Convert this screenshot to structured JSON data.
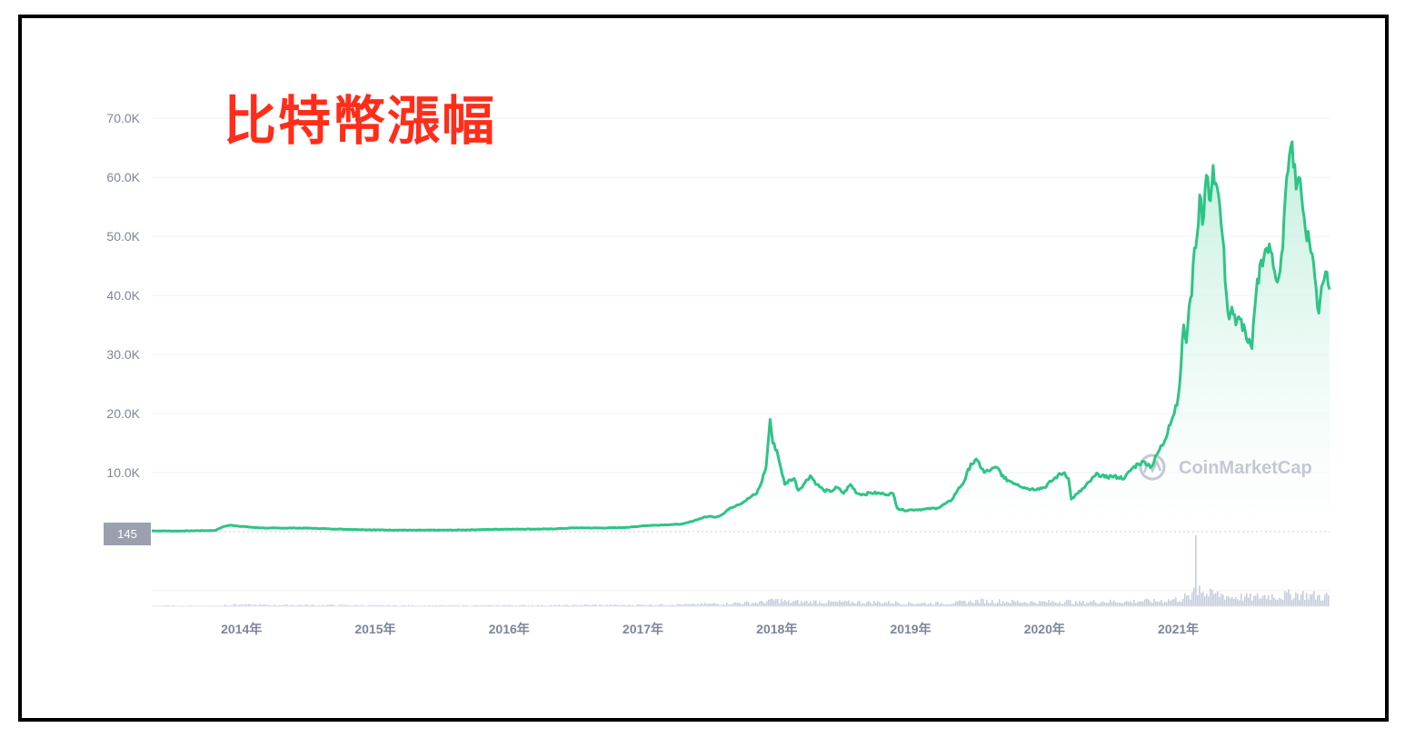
{
  "title": "比特幣漲幅",
  "watermark": "CoinMarketCap",
  "colors": {
    "line": "#2ec486",
    "area_top": "#bfeedb",
    "area_bottom": "#ffffff",
    "volume": "#c7cedd",
    "title": "#ff2d1a",
    "grid": "#eef0f4",
    "axis_text": "#7d8599",
    "current_label_bg": "#9aa0ae"
  },
  "chart_data": {
    "type": "area",
    "title": "",
    "xlabel": "",
    "ylabel": "",
    "y_ticks": [
      10000,
      20000,
      30000,
      40000,
      50000,
      60000,
      70000
    ],
    "y_tick_labels": [
      "10.0K",
      "20.0K",
      "30.0K",
      "40.0K",
      "50.0K",
      "60.0K",
      "70.0K"
    ],
    "x_ticks": [
      2014,
      2015,
      2016,
      2017,
      2018,
      2019,
      2020,
      2021
    ],
    "x_tick_labels": [
      "2014年",
      "2015年",
      "2016年",
      "2017年",
      "2018年",
      "2019年",
      "2020年",
      "2021年"
    ],
    "xlim": [
      2013.33,
      2022.13
    ],
    "ylim": [
      0,
      70000
    ],
    "current_value_label": "145",
    "series": [
      {
        "values_x": [
          2013.33,
          2013.5,
          2013.8,
          2013.87,
          2013.92,
          2014.0,
          2014.1,
          2014.2,
          2014.4,
          2014.5,
          2014.7,
          2014.9,
          2015.0,
          2015.3,
          2015.6,
          2015.9,
          2016.0,
          2016.3,
          2016.5,
          2016.7,
          2016.9,
          2017.0,
          2017.1,
          2017.2,
          2017.3,
          2017.4,
          2017.45,
          2017.5,
          2017.55,
          2017.6,
          2017.65,
          2017.7,
          2017.75,
          2017.8,
          2017.85,
          2017.88,
          2017.92,
          2017.95,
          2017.97,
          2018.0,
          2018.03,
          2018.06,
          2018.1,
          2018.13,
          2018.16,
          2018.2,
          2018.25,
          2018.3,
          2018.35,
          2018.4,
          2018.45,
          2018.5,
          2018.55,
          2018.6,
          2018.65,
          2018.7,
          2018.8,
          2018.87,
          2018.9,
          2018.95,
          2019.0,
          2019.1,
          2019.2,
          2019.3,
          2019.35,
          2019.4,
          2019.45,
          2019.5,
          2019.55,
          2019.6,
          2019.65,
          2019.7,
          2019.75,
          2019.8,
          2019.85,
          2019.9,
          2019.95,
          2020.0,
          2020.05,
          2020.1,
          2020.15,
          2020.18,
          2020.2,
          2020.25,
          2020.3,
          2020.35,
          2020.4,
          2020.45,
          2020.5,
          2020.55,
          2020.6,
          2020.65,
          2020.7,
          2020.75,
          2020.8,
          2020.85,
          2020.9,
          2020.93,
          2020.96,
          2021.0,
          2021.02,
          2021.04,
          2021.06,
          2021.08,
          2021.1,
          2021.12,
          2021.14,
          2021.16,
          2021.18,
          2021.2,
          2021.22,
          2021.24,
          2021.26,
          2021.28,
          2021.3,
          2021.33,
          2021.36,
          2021.38,
          2021.4,
          2021.43,
          2021.46,
          2021.5,
          2021.52,
          2021.55,
          2021.58,
          2021.62,
          2021.66,
          2021.7,
          2021.72,
          2021.75,
          2021.78,
          2021.8,
          2021.82,
          2021.85,
          2021.88,
          2021.9,
          2021.92,
          2021.95,
          2021.98,
          2022.0,
          2022.02,
          2022.05,
          2022.08,
          2022.1,
          2022.13
        ],
        "values_y": [
          145,
          110,
          200,
          900,
          1100,
          900,
          700,
          600,
          620,
          600,
          450,
          350,
          300,
          250,
          270,
          400,
          430,
          450,
          650,
          620,
          750,
          1000,
          1100,
          1200,
          1300,
          2000,
          2400,
          2600,
          2500,
          3000,
          4000,
          4500,
          5000,
          5800,
          6500,
          8000,
          11000,
          19000,
          15000,
          13800,
          10800,
          8000,
          8800,
          9000,
          7000,
          8000,
          9500,
          8000,
          7000,
          6800,
          7500,
          6500,
          8000,
          6500,
          6300,
          6600,
          6400,
          6400,
          4000,
          3600,
          3700,
          3800,
          4000,
          5200,
          7000,
          8500,
          11500,
          12000,
          10000,
          10500,
          10800,
          9000,
          8500,
          8000,
          7500,
          7200,
          7300,
          7500,
          8500,
          9500,
          10000,
          9000,
          5500,
          6500,
          7500,
          8800,
          9800,
          9200,
          9400,
          9200,
          9100,
          10600,
          11500,
          11800,
          11000,
          13500,
          15500,
          18000,
          19500,
          23000,
          28000,
          35000,
          32000,
          38000,
          40000,
          48000,
          50000,
          57000,
          52000,
          58000,
          60000,
          56000,
          62000,
          59000,
          57000,
          50000,
          40000,
          36000,
          38000,
          35000,
          36000,
          34000,
          32000,
          31000,
          40000,
          46000,
          48000,
          47000,
          44000,
          43000,
          48000,
          57000,
          61000,
          66000,
          58000,
          60000,
          57000,
          51000,
          49000,
          47000,
          43000,
          37000,
          42000,
          44000,
          41000
        ]
      }
    ]
  }
}
